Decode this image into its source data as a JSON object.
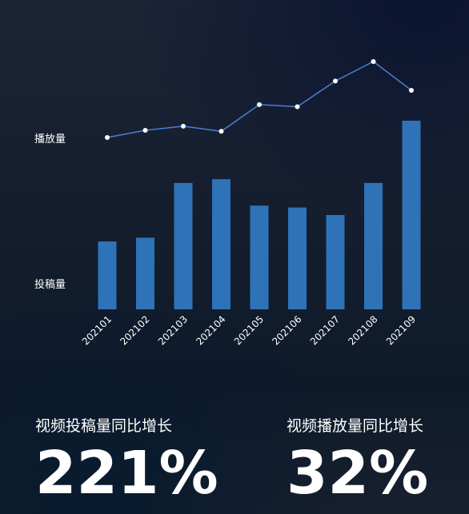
{
  "chart_data": {
    "type": "bar",
    "categories": [
      "202101",
      "202102",
      "202103",
      "202104",
      "202105",
      "202106",
      "202107",
      "202108",
      "202109"
    ],
    "series": [
      {
        "name": "投稿量",
        "type": "bar",
        "values": [
          36,
          38,
          67,
          69,
          55,
          54,
          50,
          67,
          100
        ],
        "color": "#2e73b8"
      },
      {
        "name": "播放量",
        "type": "line",
        "values": [
          26,
          33,
          37,
          32,
          58,
          56,
          81,
          100,
          72
        ],
        "color": "#4a7fd4"
      }
    ],
    "row_labels": [
      "播放量",
      "投稿量"
    ]
  },
  "stats": [
    {
      "label": "视频投稿量同比增长",
      "value": "221%"
    },
    {
      "label": "视频播放量同比增长",
      "value": "32%"
    }
  ]
}
